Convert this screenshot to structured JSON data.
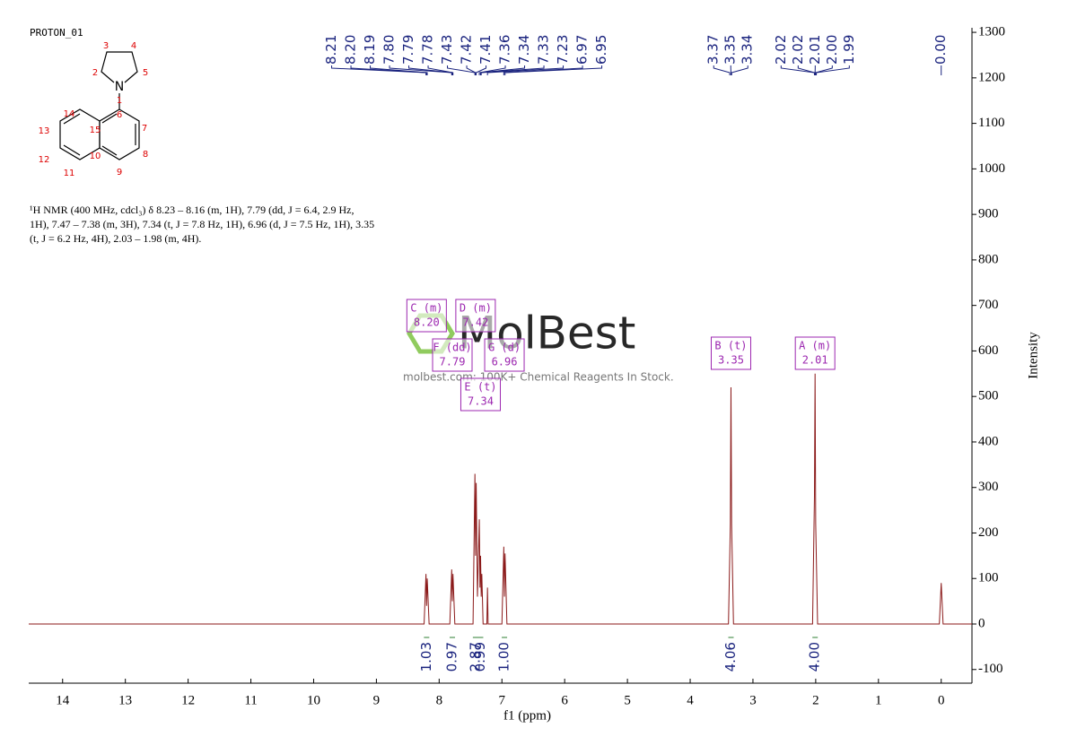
{
  "chart_data": {
    "type": "line",
    "title": "PROTON_01",
    "xlabel": "f1 (ppm)",
    "ylabel": "Intensity",
    "xlim": [
      14.54,
      -0.49
    ],
    "ylim": [
      -130,
      1310
    ],
    "xticks": [
      14,
      13,
      12,
      11,
      10,
      9,
      8,
      7,
      6,
      5,
      4,
      3,
      2,
      1,
      0
    ],
    "yticks": [
      -100,
      0,
      100,
      200,
      300,
      400,
      500,
      600,
      700,
      800,
      900,
      1000,
      1100,
      1200,
      1300
    ],
    "x": [
      14.54,
      8.24,
      8.21,
      8.2,
      8.19,
      8.16,
      7.83,
      7.8,
      7.79,
      7.78,
      7.75,
      7.46,
      7.43,
      7.42,
      7.41,
      7.39,
      7.36,
      7.35,
      7.34,
      7.33,
      7.32,
      7.3,
      7.24,
      7.23,
      7.22,
      7.0,
      6.97,
      6.96,
      6.95,
      6.92,
      3.39,
      3.36,
      3.35,
      3.34,
      3.31,
      2.05,
      2.02,
      2.01,
      2.0,
      1.97,
      0.03,
      0.0,
      -0.03,
      -0.49
    ],
    "series": [
      {
        "color": "#8b1a1a",
        "values": [
          0,
          0,
          110,
          40,
          100,
          0,
          0,
          120,
          50,
          110,
          0,
          0,
          330,
          150,
          310,
          60,
          230,
          80,
          150,
          60,
          110,
          0,
          0,
          80,
          0,
          0,
          170,
          60,
          155,
          0,
          0,
          220,
          520,
          220,
          0,
          0,
          280,
          550,
          220,
          0,
          0,
          90,
          0,
          0
        ]
      }
    ],
    "peak_label_groups": [
      [
        "8.21",
        "8.20",
        "8.19",
        "7.80",
        "7.79",
        "7.78",
        "7.43",
        "7.42",
        "7.41",
        "7.36",
        "7.34",
        "7.33",
        "7.23",
        "6.97",
        "6.95"
      ],
      [
        "3.37",
        "3.35",
        "3.34"
      ],
      [
        "2.02",
        "2.02",
        "2.01",
        "2.00",
        "1.99"
      ],
      [
        "0.00"
      ]
    ],
    "multiplets": [
      {
        "name": "C (m)",
        "shift": "8.20",
        "integral": "1.03"
      },
      {
        "name": "F (dd)",
        "shift": "7.79",
        "integral": "0.97"
      },
      {
        "name": "D (m)",
        "shift": "7.42",
        "integral": "2.87"
      },
      {
        "name": "E (t)",
        "shift": "7.34",
        "integral": "0.99"
      },
      {
        "name": "G (d)",
        "shift": "6.96",
        "integral": "1.00"
      },
      {
        "name": "B (t)",
        "shift": "3.35",
        "integral": "4.06"
      },
      {
        "name": "A (m)",
        "shift": "2.01",
        "integral": "4.00"
      }
    ]
  },
  "structure": {
    "atoms": [
      "1",
      "2",
      "3",
      "4",
      "5",
      "N",
      "6",
      "7",
      "8",
      "9",
      "10",
      "11",
      "12",
      "13",
      "14",
      "15"
    ]
  },
  "description": "¹H NMR (400 MHz, cdcl₃) δ 8.23 – 8.16 (m, 1H), 7.79 (dd, J = 6.4, 2.9 Hz, 1H), 7.47 – 7.38 (m, 3H), 7.34 (t, J = 7.8 Hz, 1H), 6.96 (d, J = 7.5 Hz, 1H), 3.35 (t, J = 6.2 Hz, 4H), 2.03 – 1.98 (m, 4H).",
  "watermark": {
    "brand": "MolBest",
    "tagline": "molbest.com: 100K+ Chemical Reagents In Stock."
  }
}
